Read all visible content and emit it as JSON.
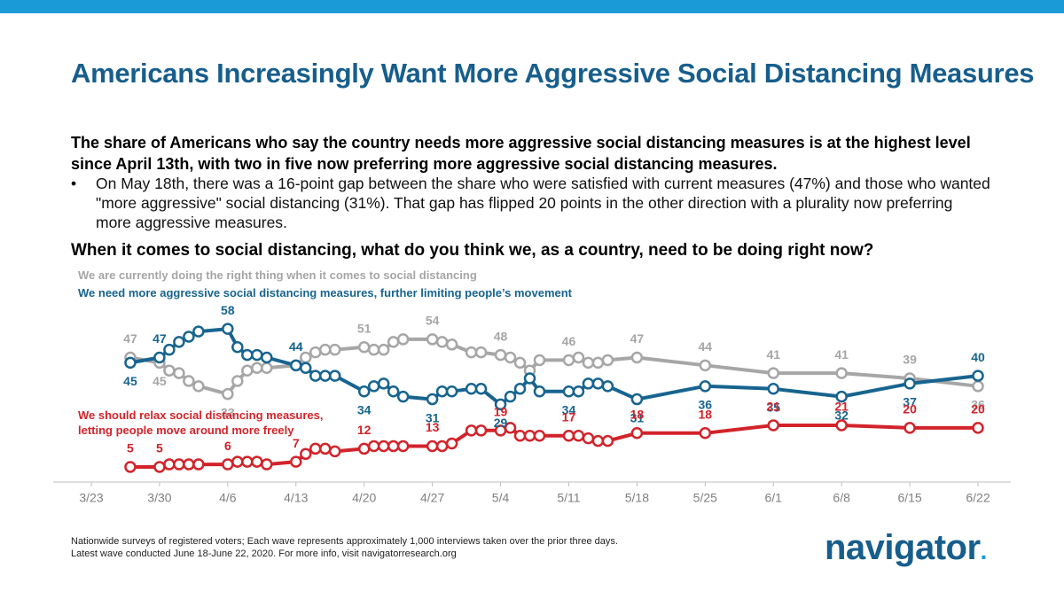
{
  "header": {
    "title": "Americans Increasingly Want More Aggressive Social Distancing Measures",
    "subtitle": "The share of Americans who say the country needs more aggressive social distancing measures is at the highest level since April 13th, with two in five now preferring more aggressive social distancing measures.",
    "bullet": "On May 18th, there was a 16-point gap between the share who were satisfied with current measures (47%) and those who wanted \"more aggressive\" social distancing (31%). That gap has flipped 20 points in the other direction with a plurality now preferring more aggressive measures.",
    "question": "When it comes to social distancing, what do you think we, as a country, need to be doing right now?"
  },
  "chart_data": {
    "type": "line",
    "x": [
      "3/27",
      "3/30",
      "3/31",
      "4/1",
      "4/2",
      "4/3",
      "4/6",
      "4/7",
      "4/8",
      "4/9",
      "4/10",
      "4/13",
      "4/14",
      "4/15",
      "4/16",
      "4/17",
      "4/20",
      "4/21",
      "4/22",
      "4/23",
      "4/24",
      "4/27",
      "4/28",
      "4/29",
      "5/1",
      "5/2",
      "5/4",
      "5/5",
      "5/6",
      "5/7",
      "5/8",
      "5/11",
      "5/12",
      "5/13",
      "5/14",
      "5/15",
      "5/18",
      "5/25",
      "6/1",
      "6/8",
      "6/15",
      "6/22"
    ],
    "xlim": [
      "3/23",
      "6/22"
    ],
    "xticks": [
      "3/23",
      "3/30",
      "4/6",
      "4/13",
      "4/20",
      "4/27",
      "5/4",
      "5/11",
      "5/18",
      "5/25",
      "6/1",
      "6/8",
      "6/15",
      "6/22"
    ],
    "ylim": [
      0,
      62
    ],
    "series": [
      {
        "name": "We are currently doing the right thing when it comes to social distancing",
        "color": "#a6a6a6",
        "values": [
          47,
          45,
          42,
          41,
          38,
          36,
          33,
          38,
          42,
          43,
          43,
          44,
          47,
          49,
          50,
          50,
          51,
          50,
          50,
          53,
          54,
          54,
          53,
          52,
          49,
          49,
          48,
          47,
          45,
          42,
          46,
          46,
          47,
          45,
          45,
          46,
          47,
          44,
          41,
          41,
          39,
          36
        ],
        "value_labels": [
          47,
          45,
          null,
          null,
          null,
          null,
          33,
          null,
          null,
          null,
          null,
          44,
          null,
          null,
          null,
          null,
          51,
          null,
          null,
          null,
          null,
          54,
          null,
          null,
          null,
          null,
          48,
          null,
          null,
          null,
          null,
          46,
          null,
          null,
          null,
          null,
          47,
          44,
          41,
          41,
          39,
          36
        ]
      },
      {
        "name": "We need more aggressive social distancing measures, further limiting people’s movement",
        "color": "#17648f",
        "values": [
          45,
          47,
          50,
          53,
          55,
          57,
          58,
          51,
          48,
          48,
          47,
          44,
          43,
          40,
          40,
          40,
          34,
          36,
          37,
          34,
          32,
          31,
          34,
          34,
          35,
          35,
          29,
          32,
          35,
          39,
          34,
          34,
          34,
          37,
          37,
          36,
          31,
          36,
          35,
          32,
          37,
          40
        ],
        "value_labels": [
          45,
          47,
          null,
          null,
          null,
          null,
          58,
          null,
          null,
          null,
          null,
          44,
          null,
          null,
          null,
          null,
          34,
          null,
          null,
          null,
          null,
          31,
          null,
          null,
          null,
          null,
          29,
          null,
          null,
          null,
          null,
          34,
          null,
          null,
          null,
          null,
          31,
          36,
          35,
          32,
          37,
          40
        ]
      },
      {
        "name": "We should relax social distancing measures, letting people move around more freely",
        "color": "#d2232a",
        "values": [
          5,
          5,
          6,
          6,
          6,
          6,
          6,
          7,
          7,
          7,
          6,
          7,
          10,
          12,
          12,
          11,
          12,
          13,
          13,
          13,
          13,
          13,
          13,
          14,
          19,
          19,
          19,
          20,
          17,
          17,
          17,
          17,
          17,
          16,
          15,
          15,
          18,
          18,
          21,
          21,
          20,
          20
        ],
        "value_labels": [
          5,
          5,
          null,
          null,
          null,
          null,
          6,
          null,
          null,
          null,
          null,
          7,
          null,
          null,
          null,
          null,
          12,
          null,
          null,
          null,
          null,
          13,
          null,
          null,
          null,
          null,
          19,
          null,
          null,
          null,
          null,
          17,
          null,
          null,
          null,
          null,
          18,
          18,
          21,
          21,
          20,
          20
        ]
      }
    ]
  },
  "footer": {
    "note_line1": "Nationwide surveys of registered voters; Each wave represents approximately 1,000 interviews taken over the prior three days.",
    "note_line2": "Latest wave conducted June 18-June 22, 2020. For more info, visit navigatorresearch.org",
    "logo": "navigator",
    "logo_mark": "."
  }
}
